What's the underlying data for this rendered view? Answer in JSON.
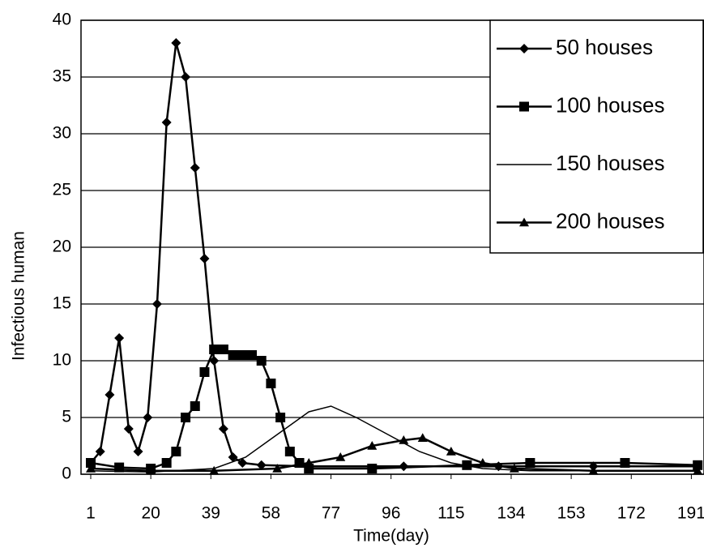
{
  "chart_data": {
    "type": "line",
    "x_label": "Time(day)",
    "y_label": "Infectious human",
    "xlim": [
      1,
      195
    ],
    "ylim": [
      0,
      40
    ],
    "xticks": [
      1,
      20,
      39,
      58,
      77,
      96,
      115,
      134,
      153,
      172,
      191
    ],
    "yticks": [
      0,
      5,
      10,
      15,
      20,
      25,
      30,
      35,
      40
    ],
    "grid": true,
    "legend": "top-right",
    "series": [
      {
        "name": "50 houses",
        "color": "#000000",
        "marker": "diamond",
        "x": [
          1,
          4,
          7,
          10,
          13,
          16,
          19,
          22,
          25,
          28,
          31,
          34,
          37,
          40,
          43,
          46,
          49,
          55,
          70,
          100,
          130,
          160,
          193
        ],
        "values": [
          1,
          2,
          7,
          12,
          4,
          2,
          5,
          15,
          31,
          38,
          35,
          27,
          19,
          10,
          4,
          1.5,
          1,
          0.8,
          0.7,
          0.7,
          0.7,
          0.7,
          0.7
        ]
      },
      {
        "name": "100 houses",
        "color": "#000000",
        "marker": "square",
        "x": [
          1,
          10,
          20,
          25,
          28,
          31,
          34,
          37,
          40,
          43,
          46,
          49,
          52,
          55,
          58,
          61,
          64,
          67,
          70,
          90,
          120,
          140,
          170,
          193
        ],
        "values": [
          1,
          0.6,
          0.5,
          1,
          2,
          5,
          6,
          9,
          11,
          11,
          10.5,
          10.5,
          10.5,
          10,
          8,
          5,
          2,
          1,
          0.5,
          0.5,
          0.8,
          1,
          1,
          0.8
        ]
      },
      {
        "name": "150 houses",
        "color": "#000000",
        "marker": "none",
        "x": [
          1,
          20,
          40,
          50,
          60,
          70,
          77,
          85,
          95,
          105,
          115,
          125,
          140,
          193
        ],
        "values": [
          0.3,
          0.2,
          0.5,
          1.5,
          3.5,
          5.5,
          6,
          5,
          3.5,
          2,
          1,
          0.5,
          0.3,
          0.3
        ]
      },
      {
        "name": "200 houses",
        "color": "#000000",
        "marker": "triangle",
        "x": [
          1,
          20,
          40,
          60,
          70,
          80,
          90,
          100,
          106,
          115,
          125,
          135,
          160,
          193
        ],
        "values": [
          0.5,
          0.3,
          0.3,
          0.5,
          1,
          1.5,
          2.5,
          3,
          3.2,
          2,
          1,
          0.5,
          0.3,
          0.3
        ]
      }
    ]
  }
}
